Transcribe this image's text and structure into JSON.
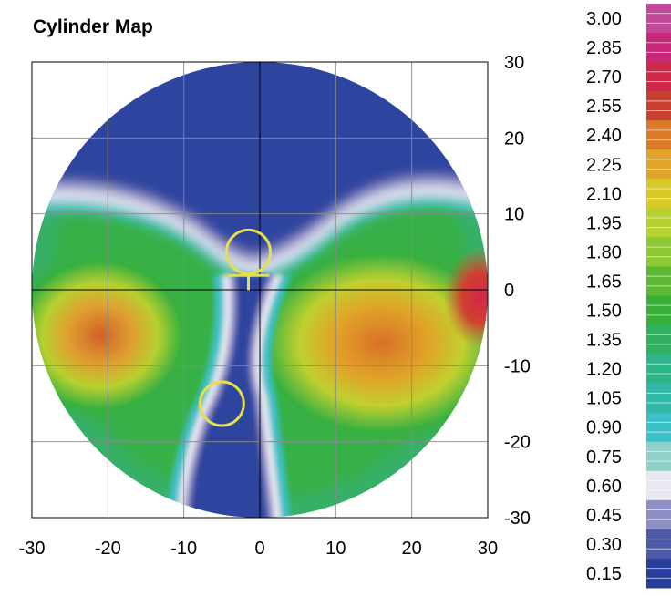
{
  "title": "Cylinder Map",
  "chart_data": {
    "type": "heatmap",
    "title": "Cylinder Map",
    "xlabel": "",
    "ylabel": "",
    "xlim": [
      -30,
      30
    ],
    "ylim": [
      -30,
      30
    ],
    "x_ticks": [
      -30,
      -20,
      -10,
      0,
      10,
      20,
      30
    ],
    "y_ticks": [
      30,
      20,
      10,
      0,
      -10,
      -20,
      -30
    ],
    "x_tick_labels": [
      "-30",
      "-20",
      "-10",
      "0",
      "10",
      "20",
      "30"
    ],
    "y_tick_labels": [
      "30",
      "20",
      "10",
      "0",
      "-10",
      "-20",
      "-30"
    ],
    "grid": true,
    "map_radius": 30,
    "colorbar": {
      "position": "right",
      "min": 0.15,
      "max": 3.0,
      "labels": [
        "3.00",
        "2.85",
        "2.70",
        "2.55",
        "2.40",
        "2.25",
        "2.10",
        "1.95",
        "1.80",
        "1.65",
        "1.50",
        "1.35",
        "1.20",
        "1.05",
        "0.90",
        "0.75",
        "0.60",
        "0.45",
        "0.30",
        "0.15"
      ],
      "stops": [
        {
          "v": 0.15,
          "color": "#2a3f9c"
        },
        {
          "v": 0.3,
          "color": "#4e5aa8"
        },
        {
          "v": 0.45,
          "color": "#8f8fc8"
        },
        {
          "v": 0.6,
          "color": "#e8e8f0"
        },
        {
          "v": 0.75,
          "color": "#8fd0c8"
        },
        {
          "v": 0.9,
          "color": "#3cc0c8"
        },
        {
          "v": 1.05,
          "color": "#30b8a8"
        },
        {
          "v": 1.2,
          "color": "#2fb48a"
        },
        {
          "v": 1.35,
          "color": "#30b060"
        },
        {
          "v": 1.5,
          "color": "#38b038"
        },
        {
          "v": 1.65,
          "color": "#5cb830"
        },
        {
          "v": 1.8,
          "color": "#8ec832"
        },
        {
          "v": 1.95,
          "color": "#b8d030"
        },
        {
          "v": 2.1,
          "color": "#d8c828"
        },
        {
          "v": 2.25,
          "color": "#e0a428"
        },
        {
          "v": 2.4,
          "color": "#d87a28"
        },
        {
          "v": 2.55,
          "color": "#c84030"
        },
        {
          "v": 2.7,
          "color": "#d02848"
        },
        {
          "v": 2.85,
          "color": "#c8287c"
        },
        {
          "v": 3.0,
          "color": "#c04898"
        }
      ]
    },
    "markers": [
      {
        "type": "circle-with-cross",
        "x": -1.5,
        "y": 5,
        "radius": 2.5,
        "color": "#e8e048"
      },
      {
        "type": "circle",
        "x": -5,
        "y": -15,
        "radius": 2.5,
        "color": "#e8e048"
      }
    ],
    "regions": [
      {
        "name": "upper-field",
        "approx_value": 0.2
      },
      {
        "name": "left-band",
        "approx_value": 2.4
      },
      {
        "name": "right-band",
        "approx_value": 2.3
      },
      {
        "name": "right-edge-peak",
        "approx_value": 2.75
      },
      {
        "name": "central-channel",
        "approx_value": 0.3
      }
    ]
  }
}
